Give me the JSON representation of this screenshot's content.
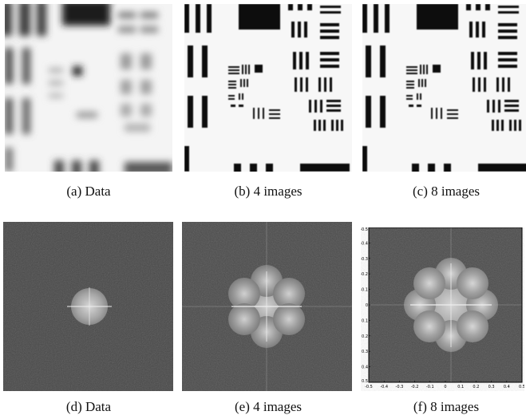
{
  "figure": {
    "captions": {
      "a": "(a) Data",
      "b": "(b) 4 images",
      "c": "(c) 8 images",
      "d": "(d) Data",
      "e": "(e) 4 images",
      "f": "(f) 8 images"
    },
    "panel_f_axes": {
      "y_ticks": [
        "-0.5",
        "-0.4",
        "-0.3",
        "-0.2",
        "-0.1",
        "0",
        "0.1",
        "0.2",
        "0.3",
        "0.4",
        "0.5"
      ],
      "x_ticks": [
        "-0.5",
        "-0.4",
        "-0.3",
        "-0.2",
        "-0.1",
        "0",
        "0.1",
        "0.2",
        "0.3",
        "0.4",
        "0.5"
      ]
    }
  }
}
